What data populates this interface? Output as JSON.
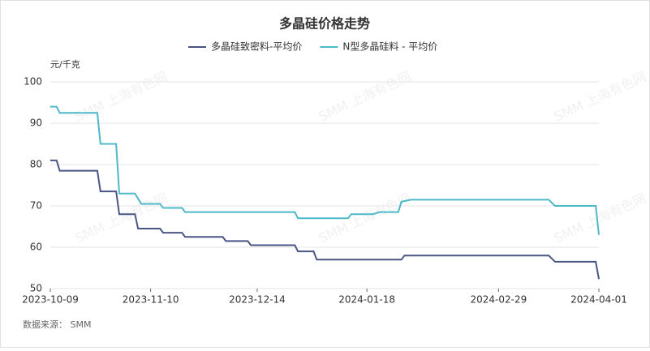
{
  "chart_data": {
    "type": "line",
    "title": "多晶硅价格走势",
    "y_unit": "元/千克",
    "source": "数据来源： SMM",
    "watermark": "SMM 上海有色网",
    "x_start": "2023-10-09",
    "x_end": "2024-04-01",
    "xticks": [
      "2023-10-09",
      "2023-11-10",
      "2023-12-14",
      "2024-01-18",
      "2024-02-29",
      "2024-04-01"
    ],
    "ylim": [
      50,
      100
    ],
    "yticks": [
      50,
      60,
      70,
      80,
      90,
      100
    ],
    "grid": true,
    "series": [
      {
        "name": "多晶硅致密料-平均价",
        "color": "#4a5586",
        "x": [
          "2023-10-09",
          "2023-10-11",
          "2023-10-12",
          "2023-10-24",
          "2023-10-25",
          "2023-10-30",
          "2023-10-31",
          "2023-11-05",
          "2023-11-06",
          "2023-11-13",
          "2023-11-14",
          "2023-11-20",
          "2023-11-21",
          "2023-12-03",
          "2023-12-04",
          "2023-12-11",
          "2023-12-12",
          "2023-12-26",
          "2023-12-27",
          "2024-01-01",
          "2024-01-02",
          "2024-01-29",
          "2024-01-30",
          "2024-03-16",
          "2024-03-18",
          "2024-03-31",
          "2024-04-01"
        ],
        "values": [
          81,
          81,
          78.5,
          78.5,
          73.5,
          73.5,
          68,
          68,
          64.5,
          64.5,
          63.5,
          63.5,
          62.5,
          62.5,
          61.5,
          61.5,
          60.5,
          60.5,
          59,
          59,
          57,
          57,
          58,
          58,
          56.5,
          56.5,
          52.3
        ]
      },
      {
        "name": "N型多晶硅料 - 平均价",
        "color": "#4cb8c8",
        "x": [
          "2023-10-09",
          "2023-10-11",
          "2023-10-12",
          "2023-10-24",
          "2023-10-25",
          "2023-10-30",
          "2023-10-31",
          "2023-11-05",
          "2023-11-07",
          "2023-11-13",
          "2023-11-14",
          "2023-11-20",
          "2023-11-21",
          "2023-12-26",
          "2023-12-27",
          "2024-01-12",
          "2024-01-13",
          "2024-01-20",
          "2024-01-22",
          "2024-01-28",
          "2024-01-29",
          "2024-02-01",
          "2024-03-16",
          "2024-03-18",
          "2024-03-31",
          "2024-04-01"
        ],
        "values": [
          94,
          94,
          92.5,
          92.5,
          85,
          85,
          73,
          73,
          70.5,
          70.5,
          69.5,
          69.5,
          68.5,
          68.5,
          67,
          67,
          68,
          68,
          68.5,
          68.5,
          71,
          71.5,
          71.5,
          70,
          70,
          63
        ]
      }
    ]
  }
}
